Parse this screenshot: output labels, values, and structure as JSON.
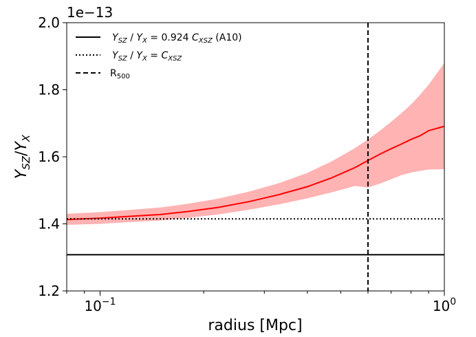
{
  "chart_data": {
    "type": "line",
    "xscale": "log",
    "xlim": [
      0.08,
      1.0
    ],
    "ylim": [
      1.2,
      2.0
    ],
    "offset_label": "1e−13",
    "xlabel": "radius [Mpc]",
    "ylabel": "Ysz/Yx",
    "x_ticks": [
      {
        "value": 0.1,
        "label": "10−1"
      },
      {
        "value": 1.0,
        "label": "100"
      }
    ],
    "y_ticks": [
      {
        "value": 1.2,
        "label": "1.2"
      },
      {
        "value": 1.4,
        "label": "1.4"
      },
      {
        "value": 1.6,
        "label": "1.6"
      },
      {
        "value": 1.8,
        "label": "1.8"
      },
      {
        "value": 2.0,
        "label": "2.0"
      }
    ],
    "legend": {
      "placement": "upper-left",
      "entries": [
        {
          "label": "YSZ / YX = 0.924 CXSZ (A10)",
          "style": "solid"
        },
        {
          "label": "YSZ / YX = CXSZ",
          "style": "dotted"
        },
        {
          "label": "R500",
          "style": "dashed"
        }
      ]
    },
    "hlines": [
      {
        "name": "a10",
        "y": 1.308,
        "style": "solid",
        "color": "#000000"
      },
      {
        "name": "cxsz",
        "y": 1.415,
        "style": "dotted",
        "color": "#000000"
      }
    ],
    "vlines": [
      {
        "name": "r500",
        "x": 0.6,
        "style": "dashed",
        "color": "#000000"
      }
    ],
    "series": [
      {
        "color": "#ff0000",
        "band_color": "#ffb3b3",
        "x": [
          0.08,
          0.1,
          0.12,
          0.15,
          0.18,
          0.22,
          0.27,
          0.33,
          0.4,
          0.47,
          0.55,
          0.6,
          0.65,
          0.7,
          0.75,
          0.8,
          0.85,
          0.9,
          1.0
        ],
        "y": [
          1.413,
          1.417,
          1.422,
          1.428,
          1.437,
          1.449,
          1.466,
          1.487,
          1.511,
          1.537,
          1.568,
          1.589,
          1.608,
          1.624,
          1.638,
          1.652,
          1.663,
          1.678,
          1.691
        ],
        "lower": [
          1.397,
          1.4,
          1.405,
          1.41,
          1.418,
          1.428,
          1.442,
          1.458,
          1.476,
          1.494,
          1.513,
          1.508,
          1.52,
          1.533,
          1.545,
          1.553,
          1.558,
          1.562,
          1.563
        ],
        "upper": [
          1.43,
          1.435,
          1.441,
          1.449,
          1.46,
          1.475,
          1.496,
          1.521,
          1.552,
          1.586,
          1.626,
          1.652,
          1.678,
          1.704,
          1.73,
          1.756,
          1.785,
          1.815,
          1.88
        ]
      }
    ]
  }
}
